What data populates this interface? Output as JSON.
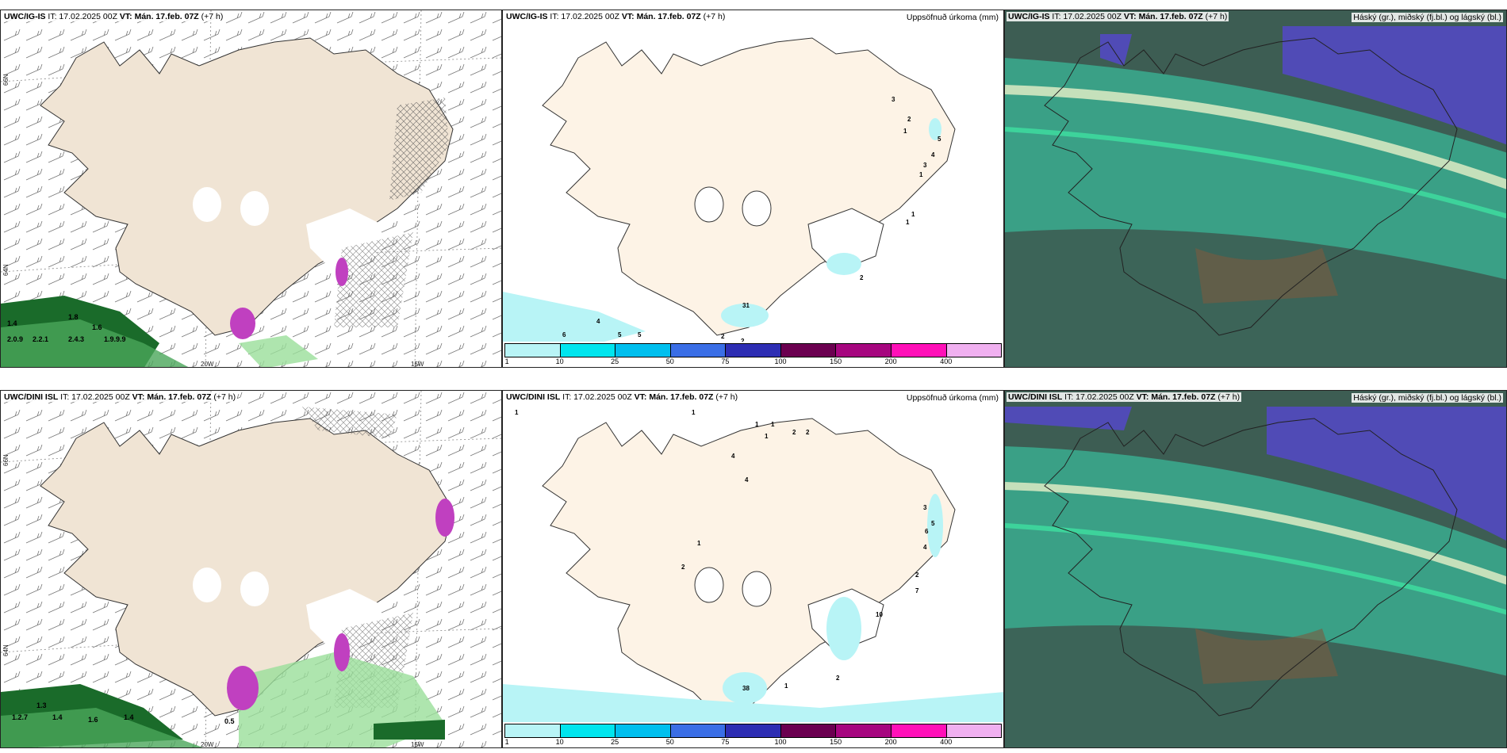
{
  "rows": [
    {
      "panels": [
        {
          "model": "UWC/IG-IS",
          "it": "IT: 17.02.2025 00Z",
          "vt": "VT: Mán. 17.feb. 07Z",
          "lead": "(+7 h)",
          "right": ""
        },
        {
          "model": "UWC/IG-IS",
          "it": "IT: 17.02.2025 00Z",
          "vt": "VT: Mán. 17.feb. 07Z",
          "lead": "(+7 h)",
          "right": "Uppsöfnuð úrkoma (mm)"
        },
        {
          "model": "UWC/IG-IS",
          "it": "IT: 17.02.2025 00Z",
          "vt": "VT: Mán. 17.feb. 07Z",
          "lead": "(+7 h)",
          "right": "Háský (gr.), miðský (fj.bl.) og lágský (bl.)"
        }
      ]
    },
    {
      "panels": [
        {
          "model": "UWC/DINI ISL",
          "it": "IT: 17.02.2025 00Z",
          "vt": "VT: Mán. 17.feb. 07Z",
          "lead": "(+7 h)",
          "right": ""
        },
        {
          "model": "UWC/DINI ISL",
          "it": "IT: 17.02.2025 00Z",
          "vt": "VT: Mán. 17.feb. 07Z",
          "lead": "(+7 h)",
          "right": "Uppsöfnuð úrkoma (mm)"
        },
        {
          "model": "UWC/DINI ISL",
          "it": "IT: 17.02.2025 00Z",
          "vt": "VT: Mán. 17.feb. 07Z",
          "lead": "(+7 h)",
          "right": "Háský (gr.), miðský (fj.bl.) og lágský (bl.)"
        }
      ]
    }
  ],
  "axis_labels": {
    "lon_west": "20W",
    "lon_east": "15W",
    "lat_top": "66N",
    "lat_bottom": "64N"
  },
  "colorbar": {
    "labels": [
      "1",
      "10",
      "25",
      "50",
      "75",
      "100",
      "150",
      "200",
      "400"
    ],
    "colors": [
      "#b8f4f6",
      "#00e5ee",
      "#00bfee",
      "#3a6ee6",
      "#2d2db3",
      "#6b0050",
      "#a6067f",
      "#ff10b8",
      "#f0b0f0"
    ]
  },
  "wind_values_top": [
    "1.4",
    "1.8",
    "1.6",
    "2.0.9",
    "2.2.1",
    "2.4.3",
    "1.9.9.9"
  ],
  "wind_values_bottom": [
    "1.3",
    "1.2.7",
    "1.4",
    "1.6",
    "1.4",
    "0.5"
  ],
  "precip_marks_top": [
    "3",
    "2",
    "1",
    "5",
    "4",
    "3",
    "1",
    "1",
    "1",
    "2",
    "4",
    "6",
    "5",
    "5",
    "2",
    "2",
    "31"
  ],
  "precip_marks_bottom": [
    "1",
    "1",
    "1",
    "1",
    "1",
    "2",
    "2",
    "4",
    "4",
    "3",
    "5",
    "6",
    "4",
    "2",
    "7",
    "10",
    "1",
    "2",
    "2",
    "1",
    "38"
  ],
  "colors": {
    "land": "#f0e4d4",
    "land_precip": "#fdf3e6",
    "sea_cloud_low": "#3aa78c",
    "cloud_mid": "#5448c8",
    "cloud_dark": "#3d5d53",
    "precip_light": "#b8f4f6"
  }
}
